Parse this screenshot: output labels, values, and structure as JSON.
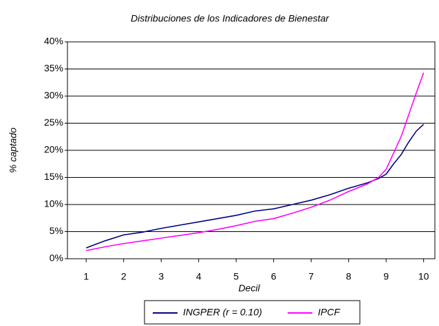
{
  "chart_data": {
    "type": "line",
    "title": "Distribuciones de los Indicadores de Bienestar",
    "x_label": "Decil",
    "y_label": "% captado",
    "x": [
      1,
      1.5,
      2,
      2.5,
      3,
      3.5,
      4,
      4.5,
      5,
      5.5,
      6,
      6.5,
      7,
      7.5,
      8,
      8.5,
      8.8,
      9,
      9.2,
      9.4,
      9.6,
      9.8,
      10
    ],
    "series": [
      {
        "name": "INGPER (r = 0.10)",
        "color": "#000080",
        "values": [
          2.0,
          3.3,
          4.4,
          4.9,
          5.6,
          6.2,
          6.8,
          7.4,
          8.0,
          8.8,
          9.2,
          10.0,
          10.8,
          11.8,
          13.0,
          14.0,
          14.8,
          15.6,
          17.5,
          19.2,
          21.5,
          23.5,
          24.8
        ]
      },
      {
        "name": "IPCF",
        "color": "#ff00ff",
        "values": [
          1.5,
          2.2,
          2.8,
          3.3,
          3.8,
          4.3,
          4.8,
          5.4,
          6.1,
          6.9,
          7.4,
          8.4,
          9.5,
          10.8,
          12.4,
          13.8,
          15.0,
          16.5,
          19.5,
          22.5,
          26.5,
          30.5,
          34.3
        ]
      }
    ],
    "xlim": [
      0.5,
      10.3
    ],
    "xticks": [
      1,
      2,
      3,
      4,
      5,
      6,
      7,
      8,
      9,
      10
    ],
    "ylim": [
      0,
      40
    ],
    "yticks": [
      {
        "value": 0,
        "label": "0%"
      },
      {
        "value": 5,
        "label": "5%"
      },
      {
        "value": 10,
        "label": "10%"
      },
      {
        "value": 15,
        "label": "15%"
      },
      {
        "value": 20,
        "label": "20%"
      },
      {
        "value": 25,
        "label": "25%"
      },
      {
        "value": 30,
        "label": "30%"
      },
      {
        "value": 35,
        "label": "35%"
      },
      {
        "value": 40,
        "label": "40%"
      }
    ],
    "grid": true,
    "legend": "bottom"
  }
}
